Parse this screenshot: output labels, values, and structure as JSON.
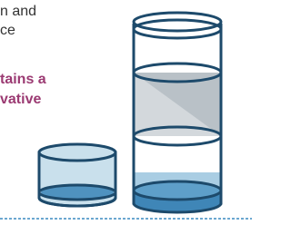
{
  "text": {
    "lines": [
      "n and",
      "ce"
    ],
    "highlight": [
      "tains a",
      "vative"
    ]
  }
}
